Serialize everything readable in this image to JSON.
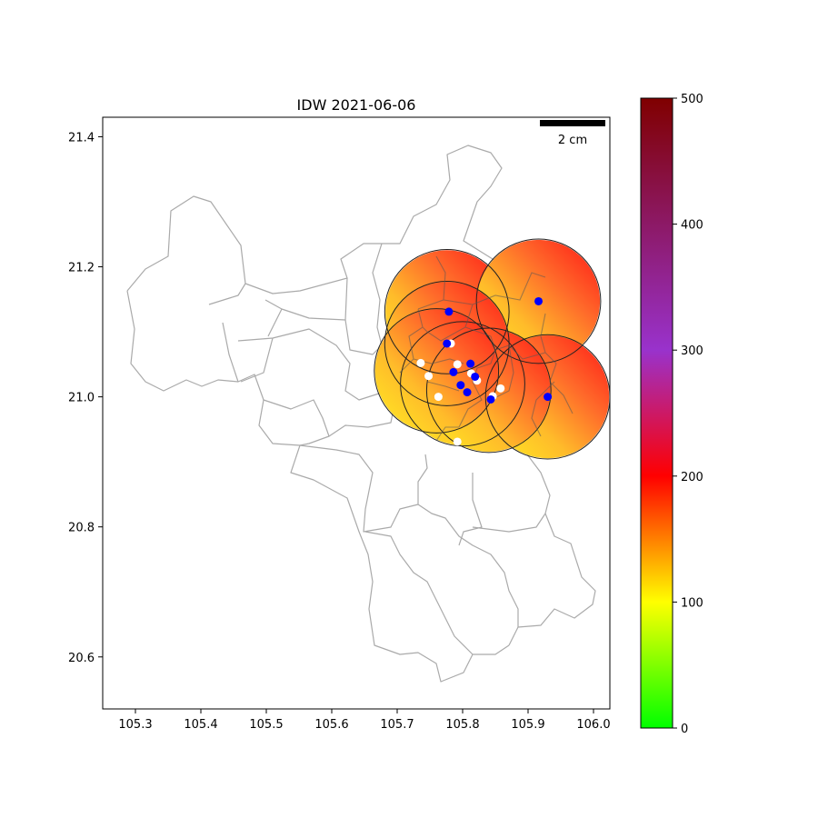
{
  "chart_data": {
    "type": "map-heatmap",
    "title": "IDW 2021-06-06",
    "xlim": [
      105.25,
      106.025
    ],
    "ylim": [
      20.52,
      21.43
    ],
    "xticks": [
      {
        "value": 105.3,
        "label": "105.3"
      },
      {
        "value": 105.4,
        "label": "105.4"
      },
      {
        "value": 105.5,
        "label": "105.5"
      },
      {
        "value": 105.6,
        "label": "105.6"
      },
      {
        "value": 105.7,
        "label": "105.7"
      },
      {
        "value": 105.8,
        "label": "105.8"
      },
      {
        "value": 105.9,
        "label": "105.9"
      },
      {
        "value": 106.0,
        "label": "106.0"
      }
    ],
    "yticks": [
      {
        "value": 20.6,
        "label": "20.6"
      },
      {
        "value": 20.8,
        "label": "20.8"
      },
      {
        "value": 21.0,
        "label": "21.0"
      },
      {
        "value": 21.2,
        "label": "21.2"
      },
      {
        "value": 21.4,
        "label": "21.4"
      }
    ],
    "scalebar": {
      "label": "2 cm",
      "x_start": 105.917,
      "x_end": 106.017
    },
    "idw_circles": [
      {
        "lon": 105.776,
        "lat": 21.131
      },
      {
        "lon": 105.916,
        "lat": 21.147
      },
      {
        "lon": 105.776,
        "lat": 21.082
      },
      {
        "lon": 105.93,
        "lat": 21.0
      },
      {
        "lon": 105.8,
        "lat": 21.02
      },
      {
        "lon": 105.84,
        "lat": 21.01
      },
      {
        "lon": 105.76,
        "lat": 21.04
      }
    ],
    "idw_radius_deg": 0.095,
    "blue_stations": [
      [
        105.779,
        21.131
      ],
      [
        105.916,
        21.147
      ],
      [
        105.776,
        21.082
      ],
      [
        105.812,
        21.051
      ],
      [
        105.786,
        21.038
      ],
      [
        105.819,
        21.031
      ],
      [
        105.797,
        21.018
      ],
      [
        105.807,
        21.007
      ],
      [
        105.843,
        20.996
      ],
      [
        105.93,
        21.0
      ]
    ],
    "white_stations": [
      [
        105.782,
        21.082
      ],
      [
        105.736,
        21.052
      ],
      [
        105.748,
        21.032
      ],
      [
        105.792,
        21.05
      ],
      [
        105.813,
        21.036
      ],
      [
        105.822,
        21.025
      ],
      [
        105.763,
        21.0
      ],
      [
        105.858,
        21.013
      ],
      [
        105.846,
        21.001
      ],
      [
        105.792,
        20.931
      ]
    ],
    "colorbar": {
      "min": 0,
      "max": 500,
      "ticks": [
        0,
        100,
        200,
        300,
        400,
        500
      ],
      "tick_labels": [
        "0",
        "100",
        "200",
        "300",
        "400",
        "500"
      ],
      "stops": [
        {
          "value": 0,
          "color": "#00ff00"
        },
        {
          "value": 100,
          "color": "#ffff00"
        },
        {
          "value": 200,
          "color": "#ff0000"
        },
        {
          "value": 300,
          "color": "#9932cc"
        },
        {
          "value": 500,
          "color": "#800000"
        }
      ]
    }
  }
}
